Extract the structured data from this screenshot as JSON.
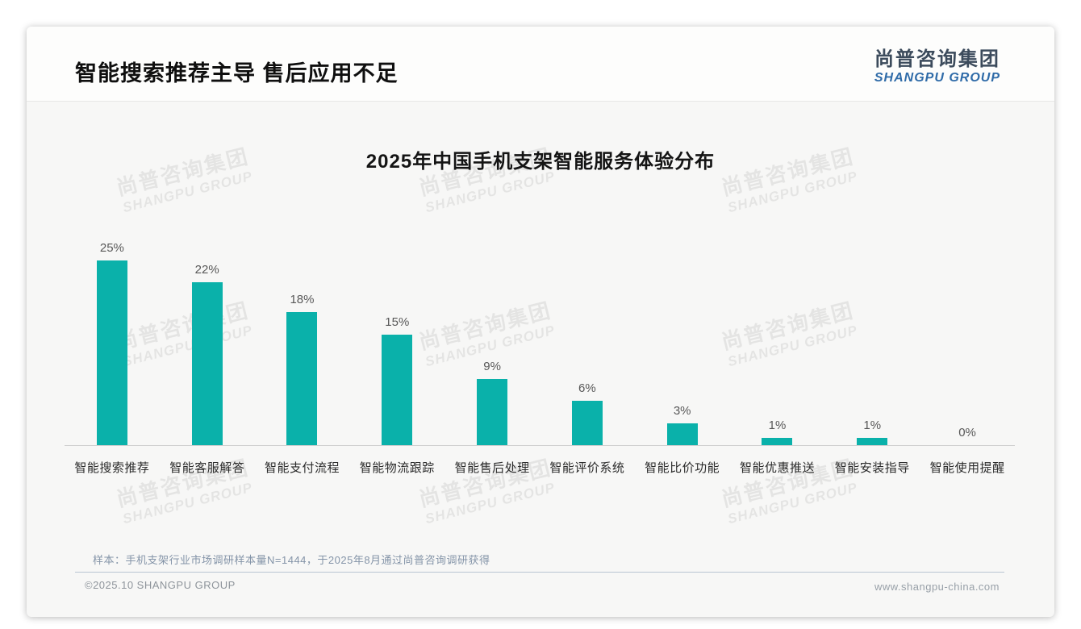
{
  "page": {
    "title": "智能搜索推荐主导 售后应用不足",
    "logo": {
      "cn": "尚普咨询集团",
      "en": "SHANGPU GROUP"
    },
    "watermark": {
      "cn": "尚普咨询集团",
      "en": "SHANGPU GROUP"
    },
    "note": "样本：手机支架行业市场调研样本量N=1444，于2025年8月通过尚普咨询调研获得",
    "footer": {
      "copyright": "©2025.10 SHANGPU GROUP",
      "website": "www.shangpu-china.com"
    },
    "colors": {
      "bar": "#0ab1aa",
      "logo_blue": "#2f6ba8",
      "logo_dark": "#3c4b5c",
      "note_text": "#8494a8"
    }
  },
  "chart_data": {
    "type": "bar",
    "title": "2025年中国手机支架智能服务体验分布",
    "categories": [
      "智能搜索推荐",
      "智能客服解答",
      "智能支付流程",
      "智能物流跟踪",
      "智能售后处理",
      "智能评价系统",
      "智能比价功能",
      "智能优惠推送",
      "智能安装指导",
      "智能使用提醒"
    ],
    "values": [
      25,
      22,
      18,
      15,
      9,
      6,
      3,
      1,
      1,
      0
    ],
    "labels": [
      "25%",
      "22%",
      "18%",
      "15%",
      "9%",
      "6%",
      "3%",
      "1%",
      "1%",
      "0%"
    ],
    "unit": "%",
    "xlabel": "",
    "ylabel": "",
    "ylim": [
      0,
      26
    ],
    "grid": false,
    "legend": null,
    "bar_color": "#0ab1aa"
  }
}
